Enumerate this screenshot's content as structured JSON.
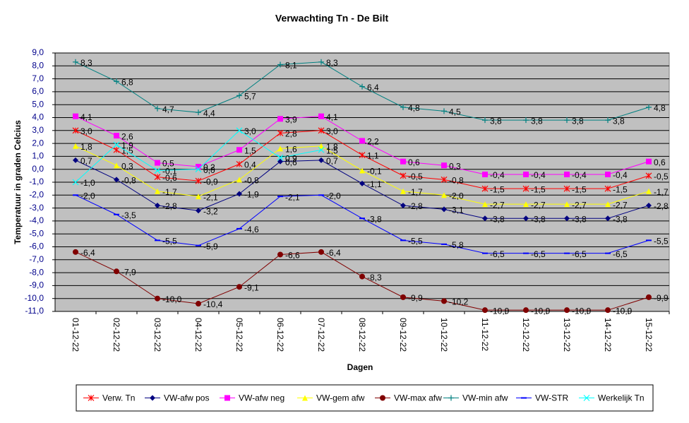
{
  "chart_data": {
    "type": "line",
    "title": "Verwachting Tn - De Bilt",
    "x_label": "Dagen",
    "y_label": "Temperatuur in graden Celcius",
    "categories": [
      "01-12-22",
      "02-12-22",
      "03-12-22",
      "04-12-22",
      "05-12-22",
      "06-12-22",
      "07-12-22",
      "08-12-22",
      "09-12-22",
      "10-12-22",
      "11-12-22",
      "12-12-22",
      "13-12-22",
      "14-12-22",
      "15-12-22"
    ],
    "ylim": [
      -11,
      9
    ],
    "yticks": [
      {
        "value": 9,
        "label": "9,0"
      },
      {
        "value": 8,
        "label": "8,0"
      },
      {
        "value": 7,
        "label": "7,0"
      },
      {
        "value": 6,
        "label": "6,0"
      },
      {
        "value": 5,
        "label": "5,0"
      },
      {
        "value": 4,
        "label": "4,0"
      },
      {
        "value": 3,
        "label": "3,0"
      },
      {
        "value": 2,
        "label": "2,0"
      },
      {
        "value": 1,
        "label": "1,0"
      },
      {
        "value": 0,
        "label": "0,0"
      },
      {
        "value": -1,
        "label": "-1,0"
      },
      {
        "value": -2,
        "label": "-2,0"
      },
      {
        "value": -3,
        "label": "-3,0"
      },
      {
        "value": -4,
        "label": "-4,0"
      },
      {
        "value": -5,
        "label": "-5,0"
      },
      {
        "value": -6,
        "label": "-6,0"
      },
      {
        "value": -7,
        "label": "-7,0"
      },
      {
        "value": -8,
        "label": "-8,0"
      },
      {
        "value": -9,
        "label": "-9,0"
      },
      {
        "value": -10,
        "label": "-10,0"
      },
      {
        "value": -11,
        "label": "-11,0"
      }
    ],
    "grid": true,
    "legend": "bottom",
    "series": [
      {
        "name": "Verw. Tn",
        "color": "#ff0000",
        "marker": "star",
        "values": [
          3.0,
          1.5,
          -0.6,
          -0.9,
          0.4,
          2.8,
          3.0,
          1.1,
          -0.5,
          -0.8,
          -1.5,
          -1.5,
          -1.5,
          -1.5,
          -0.5
        ],
        "value_labels": [
          "3,0",
          "1,5",
          "-0,6",
          "-0,9",
          "0,4",
          "2,8",
          "3,0",
          "1,1",
          "-0,5",
          "-0,8",
          "-1,5",
          "-1,5",
          "-1,5",
          "-1,5",
          "-0,5"
        ]
      },
      {
        "name": "VW-afw pos",
        "color": "#000080",
        "marker": "diamond",
        "values": [
          0.7,
          -0.8,
          -2.8,
          -3.2,
          -1.9,
          0.6,
          0.7,
          -1.1,
          -2.8,
          -3.1,
          -3.8,
          -3.8,
          -3.8,
          -3.8,
          -2.8
        ],
        "value_labels": [
          "0,7",
          "-0,8",
          "-2,8",
          "-3,2",
          "-1,9",
          "0,6",
          "0,7",
          "-1,1",
          "-2,8",
          "-3,1",
          "-3,8",
          "-3,8",
          "-3,8",
          "-3,8",
          "-2,8"
        ]
      },
      {
        "name": "VW-afw neg",
        "color": "#ff00ff",
        "marker": "square",
        "values": [
          4.1,
          2.6,
          0.5,
          0.2,
          1.5,
          3.9,
          4.1,
          2.2,
          0.6,
          0.3,
          -0.4,
          -0.4,
          -0.4,
          -0.4,
          0.6
        ],
        "value_labels": [
          "4,1",
          "2,6",
          "0,5",
          "0,2",
          "1,5",
          "3,9",
          "4,1",
          "2,2",
          "0,6",
          "0,3",
          "-0,4",
          "-0,4",
          "-0,4",
          "-0,4",
          "0,6"
        ]
      },
      {
        "name": "VW-gem afw",
        "color": "#ffff00",
        "marker": "triangle",
        "values": [
          1.8,
          0.3,
          -1.7,
          -2.1,
          -0.8,
          1.6,
          1.8,
          -0.1,
          -1.7,
          -2.0,
          -2.7,
          -2.7,
          -2.7,
          -2.7,
          -1.7
        ],
        "value_labels": [
          "1,8",
          "0,3",
          "-1,7",
          "-2,1",
          "-0,8",
          "1,6",
          "1,8",
          "-0,1",
          "-1,7",
          "-2,0",
          "-2,7",
          "-2,7",
          "-2,7",
          "-2,7",
          "-1,7"
        ]
      },
      {
        "name": "VW-max afw",
        "color": "#800000",
        "marker": "circle",
        "values": [
          -6.4,
          -7.9,
          -10.0,
          -10.4,
          -9.1,
          -6.6,
          -6.4,
          -8.3,
          -9.9,
          -10.2,
          -10.9,
          -10.9,
          -10.9,
          -10.9,
          -9.9
        ],
        "value_labels": [
          "-6,4",
          "-7,9",
          "-10,0",
          "-10,4",
          "-9,1",
          "-6,6",
          "-6,4",
          "-8,3",
          "-9,9",
          "-10,2",
          "-10,9",
          "-10,9",
          "-10,9",
          "-10,9",
          "-9,9"
        ]
      },
      {
        "name": "VW-min afw",
        "color": "#008080",
        "marker": "plus",
        "values": [
          8.3,
          6.8,
          4.7,
          4.4,
          5.7,
          8.1,
          8.3,
          6.4,
          4.8,
          4.5,
          3.8,
          3.8,
          3.8,
          3.8,
          4.8
        ],
        "value_labels": [
          "8,3",
          "6,8",
          "4,7",
          "4,4",
          "5,7",
          "8,1",
          "8,3",
          "6,4",
          "4,8",
          "4,5",
          "3,8",
          "3,8",
          "3,8",
          "3,8",
          "4,8"
        ]
      },
      {
        "name": "VW-STR",
        "color": "#0000ff",
        "marker": "dash",
        "values": [
          -2.0,
          -3.5,
          -5.5,
          -5.9,
          -4.6,
          -2.1,
          -2.0,
          -3.8,
          -5.5,
          -5.8,
          -6.5,
          -6.5,
          -6.5,
          -6.5,
          -5.5
        ],
        "value_labels": [
          "-2,0",
          "-3,5",
          "-5,5",
          "-5,9",
          "-4,6",
          "-2,1",
          "-2,0",
          "-3,8",
          "-5,5",
          "-5,8",
          "-6,5",
          "-6,5",
          "-6,5",
          "-6,5",
          "-5,5"
        ]
      },
      {
        "name": "Werkelijk Tn",
        "color": "#00ffff",
        "marker": "x",
        "values": [
          -1.0,
          1.9,
          -0.1,
          0.0,
          3.0,
          0.9,
          1.5,
          null,
          null,
          null,
          null,
          null,
          null,
          null,
          null
        ],
        "value_labels": [
          "-1,0",
          "1,9",
          "-0,1",
          "0,0",
          "3,0",
          "0,9",
          "1,5",
          null,
          null,
          null,
          null,
          null,
          null,
          null,
          null
        ]
      }
    ]
  }
}
